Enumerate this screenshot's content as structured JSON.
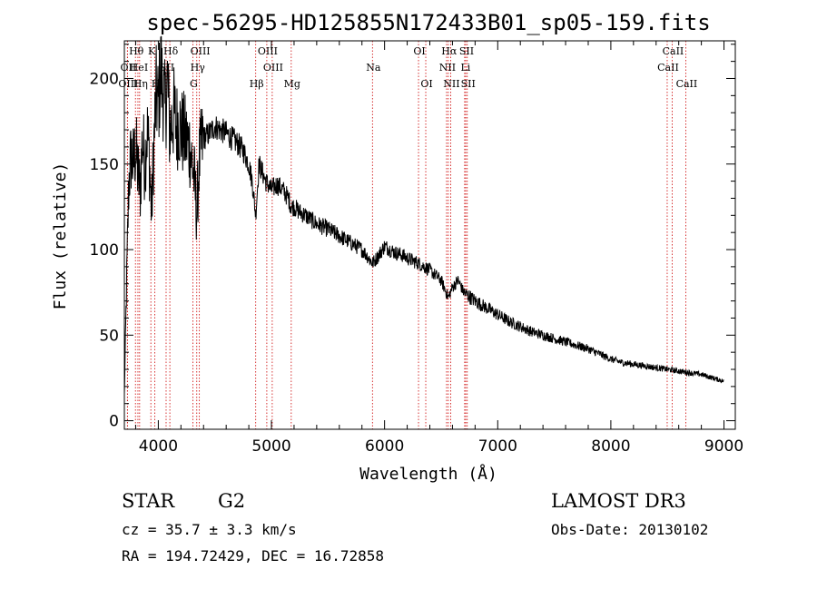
{
  "chart_data": {
    "type": "line",
    "title": "spec-56295-HD125855N172433B01_sp05-159.fits",
    "xlabel": "Wavelength (Å)",
    "ylabel": "Flux (relative)",
    "xlim": [
      3700,
      9100
    ],
    "ylim": [
      -5,
      222
    ],
    "x_ticks": [
      4000,
      5000,
      6000,
      7000,
      8000,
      9000
    ],
    "y_ticks": [
      0,
      50,
      100,
      150,
      200
    ],
    "series": [
      {
        "name": "spectrum",
        "x": [
          3700,
          3720,
          3740,
          3760,
          3780,
          3800,
          3820,
          3840,
          3860,
          3880,
          3900,
          3920,
          3940,
          3960,
          3980,
          4000,
          4020,
          4040,
          4060,
          4080,
          4100,
          4120,
          4140,
          4160,
          4180,
          4200,
          4240,
          4280,
          4300,
          4320,
          4340,
          4360,
          4380,
          4400,
          4450,
          4500,
          4550,
          4600,
          4650,
          4700,
          4750,
          4800,
          4830,
          4861,
          4890,
          4920,
          4950,
          5000,
          5050,
          5100,
          5150,
          5175,
          5200,
          5250,
          5300,
          5400,
          5500,
          5600,
          5700,
          5800,
          5850,
          5893,
          5930,
          6000,
          6050,
          6100,
          6150,
          6200,
          6300,
          6400,
          6500,
          6563,
          6600,
          6650,
          6700,
          6800,
          6900,
          7000,
          7100,
          7200,
          7300,
          7400,
          7500,
          7600,
          7700,
          7800,
          7900,
          8000,
          8100,
          8200,
          8300,
          8400,
          8500,
          8600,
          8700,
          8800,
          8900,
          9000
        ],
        "y": [
          15,
          80,
          140,
          155,
          150,
          160,
          145,
          135,
          165,
          150,
          170,
          155,
          120,
          160,
          190,
          185,
          205,
          195,
          180,
          200,
          170,
          175,
          180,
          172,
          175,
          170,
          165,
          160,
          150,
          140,
          120,
          150,
          160,
          165,
          168,
          172,
          170,
          168,
          165,
          162,
          158,
          150,
          140,
          120,
          150,
          145,
          140,
          135,
          138,
          135,
          130,
          125,
          125,
          122,
          120,
          115,
          112,
          108,
          104,
          100,
          96,
          92,
          95,
          102,
          100,
          98,
          97,
          95,
          92,
          88,
          82,
          72,
          78,
          82,
          75,
          70,
          66,
          62,
          58,
          55,
          52,
          50,
          48,
          46,
          44,
          42,
          39,
          36,
          34,
          33,
          32,
          31,
          30,
          29,
          28,
          27,
          25,
          23
        ],
        "style": "noisy-line"
      }
    ],
    "spectral_lines": [
      {
        "label": "Hθ",
        "x": 3798,
        "row": 1
      },
      {
        "label": "OII",
        "x": 3727,
        "row": 2
      },
      {
        "label": "OIII",
        "x": 3727,
        "row": 3
      },
      {
        "label": "HeI",
        "x": 3820,
        "row": 2
      },
      {
        "label": "Hη",
        "x": 3835,
        "row": 3
      },
      {
        "label": "K",
        "x": 3934,
        "row": 1
      },
      {
        "label": "SII",
        "x": 4069,
        "row": 2
      },
      {
        "label": "H",
        "x": 3969,
        "row": 3
      },
      {
        "label": "Hδ",
        "x": 4102,
        "row": 1
      },
      {
        "label": "OIII",
        "x": 4363,
        "row": 1
      },
      {
        "label": "Hγ",
        "x": 4340,
        "row": 2
      },
      {
        "label": "G",
        "x": 4305,
        "row": 3
      },
      {
        "label": "Hβ",
        "x": 4861,
        "row": 3
      },
      {
        "label": "OIII",
        "x": 4959,
        "row": 1
      },
      {
        "label": "OIII",
        "x": 5007,
        "row": 2
      },
      {
        "label": "Mg",
        "x": 5175,
        "row": 3
      },
      {
        "label": "Na",
        "x": 5893,
        "row": 2
      },
      {
        "label": "OI",
        "x": 6300,
        "row": 1
      },
      {
        "label": "OI",
        "x": 6364,
        "row": 3
      },
      {
        "label": "Hα",
        "x": 6563,
        "row": 1
      },
      {
        "label": "SII",
        "x": 6717,
        "row": 1
      },
      {
        "label": "NII",
        "x": 6548,
        "row": 2
      },
      {
        "label": "Li",
        "x": 6708,
        "row": 2
      },
      {
        "label": "NII",
        "x": 6584,
        "row": 3
      },
      {
        "label": "SII",
        "x": 6731,
        "row": 3
      },
      {
        "label": "CaII",
        "x": 8542,
        "row": 1
      },
      {
        "label": "CaII",
        "x": 8498,
        "row": 2
      },
      {
        "label": "CaII",
        "x": 8662,
        "row": 3
      }
    ]
  },
  "info": {
    "object_class": "STAR",
    "subclass": "G2",
    "survey": "LAMOST DR3",
    "cz": "cz = 35.7 ± 3.3 km/s",
    "obs_date": "Obs-Date: 20130102",
    "coords": "RA = 194.72429, DEC =  16.72858"
  },
  "colors": {
    "line": "#000000",
    "marker": "#cc0000"
  }
}
